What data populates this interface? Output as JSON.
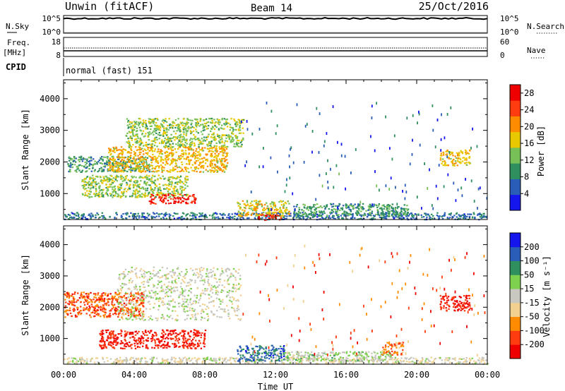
{
  "header": {
    "station": "Unwin (fitACF)",
    "beam": "Beam 14",
    "date": "25/Oct/2016"
  },
  "top_panels": {
    "noise": {
      "left_label_line1": "N.Sky",
      "left_ticks": [
        "10^5",
        "10^0"
      ],
      "right_ticks": [
        "10^5",
        "10^0"
      ],
      "right_label": "N.Search"
    },
    "frequency": {
      "left_label_line1": "Freq.",
      "left_label_line2": "[MHz]",
      "left_ticks": [
        "18",
        "8"
      ],
      "right_ticks": [
        "60",
        "0"
      ],
      "right_label": "Nave"
    },
    "cpid": {
      "label": "CPID",
      "text": "normal (fast) 151"
    }
  },
  "chart_data": [
    {
      "type": "heatmap",
      "title": "",
      "ylabel": "Slant Range [km]",
      "xlabel": "",
      "x_ticks": [
        "00:00",
        "04:00",
        "08:00",
        "12:00",
        "16:00",
        "20:00",
        "00:00"
      ],
      "xlim_hours": [
        0,
        24
      ],
      "y_ticks": [
        1000,
        2000,
        3000,
        4000
      ],
      "ylim": [
        180,
        4600
      ],
      "colorbar": {
        "label": "Power [dB]",
        "ticks": [
          4,
          8,
          12,
          16,
          20,
          24,
          28
        ],
        "range": [
          0,
          30
        ],
        "colors": [
          "#1515ee",
          "#2a5db8",
          "#2f8f5f",
          "#77c057",
          "#e8c800",
          "#ff8c00",
          "#ff3b10",
          "#ee0000"
        ]
      },
      "echo_regions": [
        {
          "x_hours": [
            0.2,
            5.0
          ],
          "range_km": [
            1700,
            2200
          ],
          "value": 10
        },
        {
          "x_hours": [
            2.5,
            9.3
          ],
          "range_km": [
            1700,
            2500
          ],
          "value": 18
        },
        {
          "x_hours": [
            1.0,
            7.0
          ],
          "range_km": [
            900,
            1600
          ],
          "value": 14
        },
        {
          "x_hours": [
            4.8,
            7.5
          ],
          "range_km": [
            700,
            1000
          ],
          "value": 27
        },
        {
          "x_hours": [
            3.5,
            10.2
          ],
          "range_km": [
            2500,
            3400
          ],
          "value": 14
        },
        {
          "x_hours": [
            0.0,
            24.0
          ],
          "range_km": [
            200,
            420
          ],
          "value": 7
        },
        {
          "x_hours": [
            9.8,
            12.8
          ],
          "range_km": [
            300,
            800
          ],
          "value": 17
        },
        {
          "x_hours": [
            11.0,
            12.3
          ],
          "range_km": [
            180,
            350
          ],
          "value": 27
        },
        {
          "x_hours": [
            13.0,
            19.5
          ],
          "range_km": [
            300,
            700
          ],
          "value": 10
        },
        {
          "x_hours": [
            21.3,
            23.0
          ],
          "range_km": [
            1900,
            2400
          ],
          "value": 18
        }
      ]
    },
    {
      "type": "heatmap",
      "title": "",
      "ylabel": "Slant Range [km]",
      "xlabel": "Time UT",
      "x_ticks": [
        "00:00",
        "04:00",
        "08:00",
        "12:00",
        "16:00",
        "20:00",
        "00:00"
      ],
      "xlim_hours": [
        0,
        24
      ],
      "y_ticks": [
        1000,
        2000,
        3000,
        4000
      ],
      "ylim": [
        180,
        4600
      ],
      "colorbar": {
        "label": "Velocity [m s⁻¹]",
        "ticks": [
          "-200",
          "-100",
          "-50",
          "-15",
          "15",
          "50",
          "100",
          "200"
        ],
        "range": [
          -250,
          250
        ],
        "colors": [
          "#ee0000",
          "#ff3b10",
          "#ff8c00",
          "#f2d090",
          "#c8c8c0",
          "#7ed04f",
          "#2f8f5f",
          "#2a5db8",
          "#1515ee"
        ]
      },
      "echo_regions": [
        {
          "x_hours": [
            0.0,
            4.5
          ],
          "range_km": [
            1700,
            2500
          ],
          "value": -150
        },
        {
          "x_hours": [
            2.0,
            8.0
          ],
          "range_km": [
            700,
            1300
          ],
          "value": -200
        },
        {
          "x_hours": [
            3.0,
            10.0
          ],
          "range_km": [
            1600,
            3300
          ],
          "value": 0
        },
        {
          "x_hours": [
            0.0,
            24.0
          ],
          "range_km": [
            200,
            420
          ],
          "value": -20
        },
        {
          "x_hours": [
            9.8,
            12.5
          ],
          "range_km": [
            300,
            800
          ],
          "value": 150
        },
        {
          "x_hours": [
            12.5,
            18.5
          ],
          "range_km": [
            300,
            600
          ],
          "value": 30
        },
        {
          "x_hours": [
            18.0,
            19.2
          ],
          "range_km": [
            500,
            900
          ],
          "value": -120
        },
        {
          "x_hours": [
            21.3,
            23.0
          ],
          "range_km": [
            1900,
            2400
          ],
          "value": -200
        }
      ]
    }
  ]
}
